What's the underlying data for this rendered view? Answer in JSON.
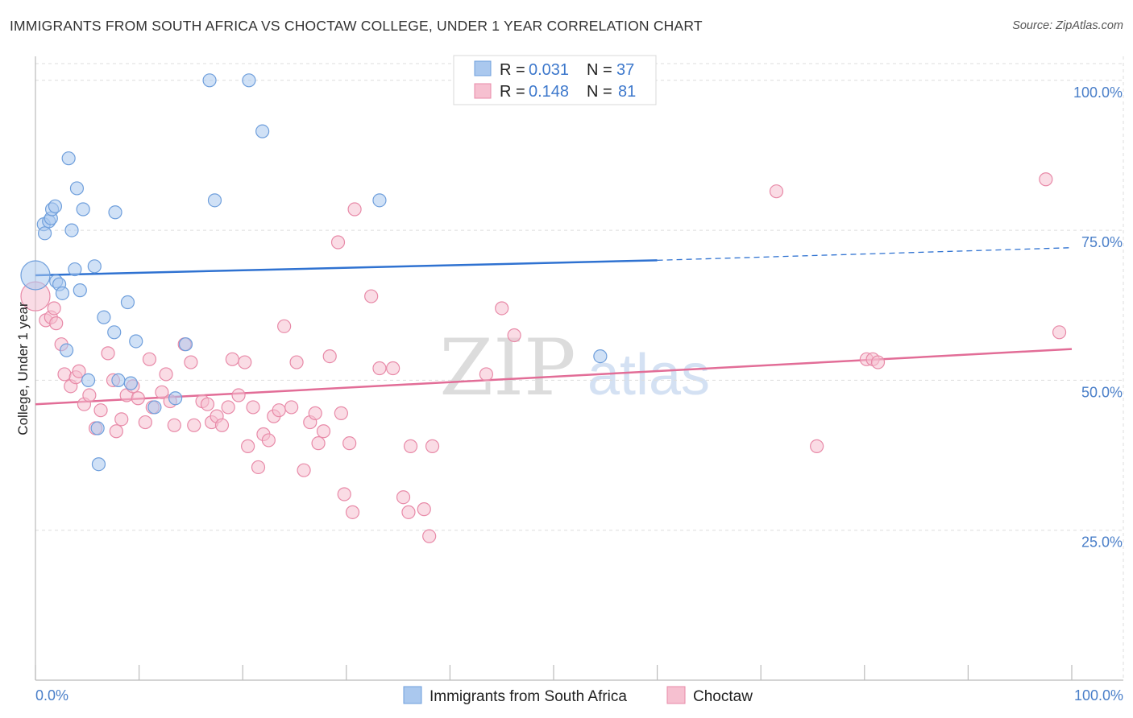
{
  "header": {
    "title": "IMMIGRANTS FROM SOUTH AFRICA VS CHOCTAW COLLEGE, UNDER 1 YEAR CORRELATION CHART",
    "source": "Source: ZipAtlas.com"
  },
  "watermark": {
    "part1": "ZIP",
    "part2": "atlas"
  },
  "colors": {
    "blue_fill": "#aac8ee",
    "blue_stroke": "#6f9fdc",
    "blue_line": "#2f72d1",
    "pink_fill": "#f6c0d0",
    "pink_stroke": "#e88aa8",
    "pink_line": "#e26d97",
    "tick_text": "#4a7fc9",
    "grid": "#dddddd"
  },
  "chart_data": {
    "type": "scatter",
    "title": "IMMIGRANTS FROM SOUTH AFRICA VS CHOCTAW COLLEGE, UNDER 1 YEAR CORRELATION CHART",
    "xlabel": "",
    "ylabel": "College, Under 1 year",
    "xlim": [
      0,
      100
    ],
    "ylim": [
      0,
      104
    ],
    "x_tick_labels": [
      "0.0%",
      "100.0%"
    ],
    "y_ticks": [
      25,
      50,
      75,
      100
    ],
    "y_tick_labels": [
      "25.0%",
      "50.0%",
      "75.0%",
      "100.0%"
    ],
    "grid": true,
    "legend": [
      {
        "r_label": "R =",
        "r": "0.031",
        "n_label": "N =",
        "n": "37"
      },
      {
        "r_label": "R =",
        "r": "0.148",
        "n_label": "N =",
        "n": "81"
      }
    ],
    "series": [
      {
        "name": "Immigrants from South Africa",
        "color": "#aac8ee",
        "trend": {
          "x": [
            0,
            60,
            100
          ],
          "y": [
            67.5,
            70.0,
            72.1
          ],
          "dashed_from": 60
        },
        "points": [
          [
            0.0,
            67.5
          ],
          [
            0.8,
            76.0
          ],
          [
            0.9,
            74.5
          ],
          [
            1.3,
            76.5
          ],
          [
            1.5,
            77.0
          ],
          [
            1.6,
            78.5
          ],
          [
            1.9,
            79.0
          ],
          [
            2.0,
            66.5
          ],
          [
            2.3,
            66.0
          ],
          [
            2.6,
            64.5
          ],
          [
            3.0,
            55.0
          ],
          [
            3.2,
            87.0
          ],
          [
            3.5,
            75.0
          ],
          [
            3.8,
            68.5
          ],
          [
            4.0,
            82.0
          ],
          [
            4.3,
            65.0
          ],
          [
            4.6,
            78.5
          ],
          [
            5.1,
            50.0
          ],
          [
            5.7,
            69.0
          ],
          [
            6.0,
            42.0
          ],
          [
            6.1,
            36.0
          ],
          [
            6.6,
            60.5
          ],
          [
            7.6,
            58.0
          ],
          [
            7.7,
            78.0
          ],
          [
            8.0,
            50.0
          ],
          [
            8.9,
            63.0
          ],
          [
            9.2,
            49.5
          ],
          [
            9.7,
            56.5
          ],
          [
            11.5,
            45.5
          ],
          [
            13.5,
            47.0
          ],
          [
            14.5,
            56.0
          ],
          [
            16.8,
            100.0
          ],
          [
            17.3,
            80.0
          ],
          [
            20.6,
            100.0
          ],
          [
            21.9,
            91.5
          ],
          [
            33.2,
            80.0
          ],
          [
            54.5,
            54.0
          ]
        ]
      },
      {
        "name": "Choctaw",
        "color": "#f6c0d0",
        "trend": {
          "x": [
            0,
            100
          ],
          "y": [
            46.0,
            55.2
          ]
        },
        "points": [
          [
            0.0,
            64.0
          ],
          [
            1.0,
            60.0
          ],
          [
            1.5,
            60.5
          ],
          [
            1.8,
            62.0
          ],
          [
            2.0,
            59.5
          ],
          [
            2.5,
            56.0
          ],
          [
            2.8,
            51.0
          ],
          [
            3.4,
            49.0
          ],
          [
            3.9,
            50.5
          ],
          [
            4.2,
            51.5
          ],
          [
            4.7,
            46.0
          ],
          [
            5.2,
            47.5
          ],
          [
            5.8,
            42.0
          ],
          [
            6.3,
            45.0
          ],
          [
            7.0,
            54.5
          ],
          [
            7.5,
            50.0
          ],
          [
            7.8,
            41.5
          ],
          [
            8.3,
            43.5
          ],
          [
            8.8,
            47.5
          ],
          [
            9.4,
            49.0
          ],
          [
            9.9,
            47.0
          ],
          [
            10.6,
            43.0
          ],
          [
            11.0,
            53.5
          ],
          [
            11.3,
            45.5
          ],
          [
            12.2,
            48.0
          ],
          [
            12.6,
            51.0
          ],
          [
            13.0,
            46.5
          ],
          [
            13.4,
            42.5
          ],
          [
            14.4,
            56.0
          ],
          [
            15.0,
            53.0
          ],
          [
            15.3,
            42.5
          ],
          [
            16.1,
            46.5
          ],
          [
            16.6,
            46.0
          ],
          [
            17.0,
            43.0
          ],
          [
            17.5,
            44.0
          ],
          [
            18.0,
            42.5
          ],
          [
            18.6,
            45.5
          ],
          [
            19.0,
            53.5
          ],
          [
            19.6,
            47.5
          ],
          [
            20.2,
            53.0
          ],
          [
            20.5,
            39.0
          ],
          [
            21.0,
            45.5
          ],
          [
            21.5,
            35.5
          ],
          [
            22.0,
            41.0
          ],
          [
            22.5,
            40.0
          ],
          [
            23.0,
            44.0
          ],
          [
            23.5,
            45.0
          ],
          [
            24.0,
            59.0
          ],
          [
            24.7,
            45.5
          ],
          [
            25.2,
            53.0
          ],
          [
            25.9,
            35.0
          ],
          [
            26.5,
            43.0
          ],
          [
            27.0,
            44.5
          ],
          [
            27.3,
            39.5
          ],
          [
            27.8,
            41.5
          ],
          [
            28.4,
            54.0
          ],
          [
            29.2,
            73.0
          ],
          [
            29.5,
            44.5
          ],
          [
            29.8,
            31.0
          ],
          [
            30.3,
            39.5
          ],
          [
            30.6,
            28.0
          ],
          [
            30.8,
            78.5
          ],
          [
            32.4,
            64.0
          ],
          [
            33.2,
            52.0
          ],
          [
            34.5,
            52.0
          ],
          [
            35.5,
            30.5
          ],
          [
            36.0,
            28.0
          ],
          [
            36.2,
            39.0
          ],
          [
            37.5,
            28.5
          ],
          [
            38.0,
            24.0
          ],
          [
            38.3,
            39.0
          ],
          [
            43.5,
            51.0
          ],
          [
            45.0,
            62.0
          ],
          [
            46.2,
            57.5
          ],
          [
            71.5,
            81.5
          ],
          [
            75.4,
            39.0
          ],
          [
            80.2,
            53.5
          ],
          [
            80.8,
            53.5
          ],
          [
            81.3,
            53.0
          ],
          [
            97.5,
            83.5
          ],
          [
            98.8,
            58.0
          ]
        ]
      }
    ]
  },
  "bottom_legend": [
    {
      "label": "Immigrants from South Africa"
    },
    {
      "label": "Choctaw"
    }
  ]
}
